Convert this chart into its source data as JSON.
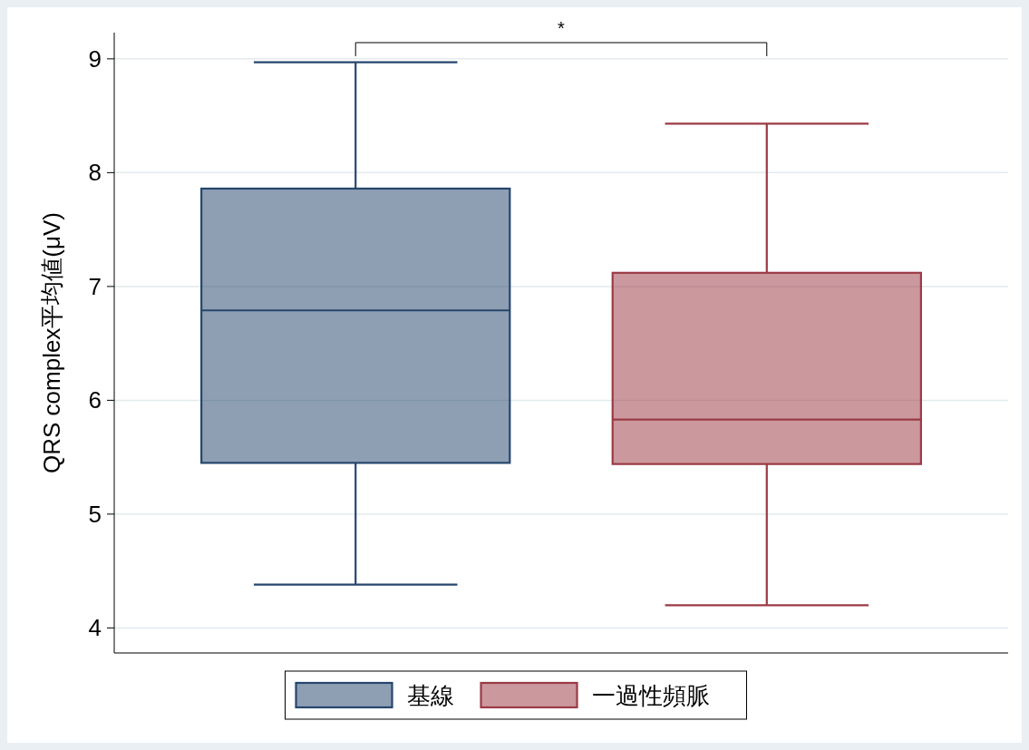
{
  "chart_data": {
    "type": "box",
    "ylabel": "QRS complex平均値(μV)",
    "categories": [
      null
    ],
    "series": [
      {
        "name": "基線",
        "color": "#26466d",
        "boxes": [
          {
            "low": 4.38,
            "q1": 5.45,
            "median": 6.79,
            "q3": 7.86,
            "high": 8.97
          }
        ]
      },
      {
        "name": "一過性頻脈",
        "color": "#9b3a45",
        "boxes": [
          {
            "low": 4.2,
            "q1": 5.44,
            "median": 5.83,
            "q3": 7.12,
            "high": 8.43
          }
        ]
      }
    ],
    "ylim": [
      3.78,
      9.23
    ],
    "yticks": [
      4,
      5,
      6,
      7,
      8,
      9
    ],
    "grid": "y",
    "legend": "bottom",
    "tick_labels": "y",
    "annotations": [
      "*"
    ]
  }
}
